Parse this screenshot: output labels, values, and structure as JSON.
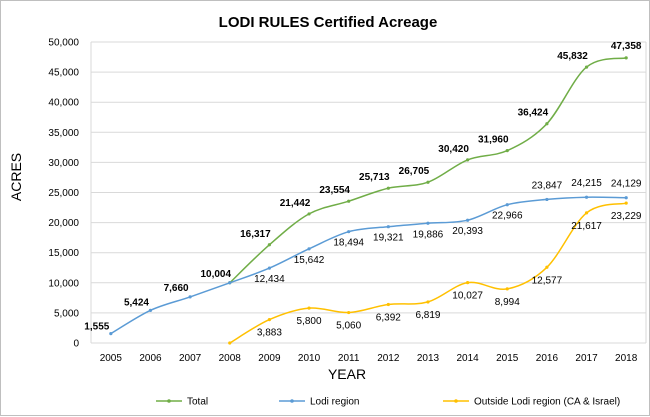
{
  "chart_data": {
    "type": "line",
    "title": "LODI RULES Certified Acreage",
    "xlabel": "YEAR",
    "ylabel": "ACRES",
    "x": [
      2005,
      2006,
      2007,
      2008,
      2009,
      2010,
      2011,
      2012,
      2013,
      2014,
      2015,
      2016,
      2017,
      2018
    ],
    "ylim": [
      0,
      50000
    ],
    "yticks": [
      0,
      5000,
      10000,
      15000,
      20000,
      25000,
      30000,
      35000,
      40000,
      45000,
      50000
    ],
    "ytick_labels": [
      "0",
      "5,000",
      "10,000",
      "15,000",
      "20,000",
      "25,000",
      "30,000",
      "35,000",
      "40,000",
      "45,000",
      "50,000"
    ],
    "grid": true,
    "legend_position": "bottom",
    "series": [
      {
        "name": "Total",
        "color": "#70ad47",
        "x": [
          2008,
          2009,
          2010,
          2011,
          2012,
          2013,
          2014,
          2015,
          2016,
          2017,
          2018
        ],
        "values": [
          10004,
          16317,
          21442,
          23554,
          25713,
          26705,
          30420,
          31960,
          36424,
          45832,
          47358
        ],
        "labels": [
          "10,004",
          "16,317",
          "21,442",
          "23,554",
          "25,713",
          "26,705",
          "30,420",
          "31,960",
          "36,424",
          "45,832",
          "47,358"
        ],
        "label_style": "bold"
      },
      {
        "name": "Lodi region",
        "color": "#5b9bd5",
        "x": [
          2005,
          2006,
          2007,
          2008,
          2009,
          2010,
          2011,
          2012,
          2013,
          2014,
          2015,
          2016,
          2017,
          2018
        ],
        "values": [
          1555,
          5424,
          7660,
          10004,
          12434,
          15642,
          18494,
          19321,
          19886,
          20393,
          22966,
          23847,
          24215,
          24129
        ],
        "labels": [
          "1,555",
          "5,424",
          "7,660",
          "",
          "12,434",
          "15,642",
          "18,494",
          "19,321",
          "19,886",
          "20,393",
          "22,966",
          "23,847",
          "24,215",
          "24,129"
        ],
        "label_styles": [
          "bold",
          "bold",
          "bold",
          "",
          "normal",
          "normal",
          "normal",
          "normal",
          "normal",
          "normal",
          "normal",
          "normal",
          "normal",
          "normal"
        ]
      },
      {
        "name": "Outside Lodi region (CA & Israel)",
        "color": "#ffc000",
        "x": [
          2008,
          2009,
          2010,
          2011,
          2012,
          2013,
          2014,
          2015,
          2016,
          2017,
          2018
        ],
        "values": [
          0,
          3883,
          5800,
          5060,
          6392,
          6819,
          10027,
          8994,
          12577,
          21617,
          23229
        ],
        "labels": [
          "",
          "3,883",
          "5,800",
          "5,060",
          "6,392",
          "6,819",
          "10,027",
          "8,994",
          "12,577",
          "21,617",
          "23,229"
        ],
        "label_style": "normal"
      }
    ]
  }
}
